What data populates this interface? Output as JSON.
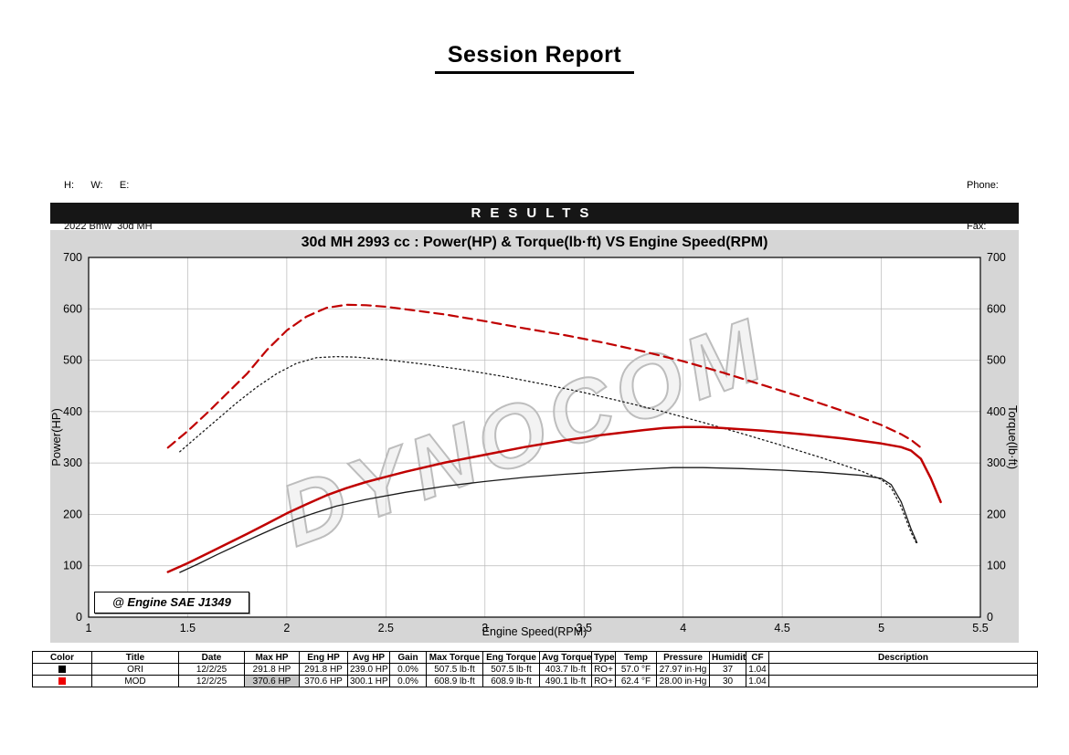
{
  "page": {
    "title": "Session Report"
  },
  "header": {
    "left_line1": "H:      W:      E:",
    "left_line2": "2022 Bmw  30d MH",
    "phone_label": "Phone:",
    "fax_label": "Fax:"
  },
  "results_banner": "RESULTS",
  "chart_data": {
    "type": "line",
    "title": "30d MH 2993 cc : Power(HP) & Torque(lb·ft) VS Engine Speed(RPM)",
    "xlabel": "Engine Speed(RPM)",
    "ylabel_left": "Power(HP)",
    "ylabel_right": "Torque(lb·ft)",
    "xlim": [
      1,
      5.5
    ],
    "ylim": [
      0,
      700
    ],
    "x_ticks": [
      1,
      1.5,
      2,
      2.5,
      3,
      3.5,
      4,
      4.5,
      5,
      5.5
    ],
    "y_ticks": [
      0,
      100,
      200,
      300,
      400,
      500,
      600,
      700
    ],
    "grid": true,
    "legend": "none",
    "watermark": "DYNOCOM",
    "annotation": "@ Engine SAE J1349",
    "series": [
      {
        "id": "mod-torque",
        "name": "MOD Torque (lb·ft)",
        "color": "#c00000",
        "style": "dashed",
        "dash": "10 6",
        "width": 2.2,
        "points": [
          [
            1.4,
            330
          ],
          [
            1.5,
            362
          ],
          [
            1.6,
            398
          ],
          [
            1.7,
            436
          ],
          [
            1.8,
            474
          ],
          [
            1.9,
            520
          ],
          [
            2.0,
            558
          ],
          [
            2.1,
            585
          ],
          [
            2.2,
            602
          ],
          [
            2.3,
            608
          ],
          [
            2.4,
            607
          ],
          [
            2.5,
            604
          ],
          [
            2.6,
            599
          ],
          [
            2.8,
            589
          ],
          [
            3.0,
            576
          ],
          [
            3.2,
            562
          ],
          [
            3.4,
            549
          ],
          [
            3.6,
            534
          ],
          [
            3.8,
            517
          ],
          [
            4.0,
            498
          ],
          [
            4.2,
            476
          ],
          [
            4.4,
            452
          ],
          [
            4.6,
            428
          ],
          [
            4.8,
            402
          ],
          [
            5.0,
            374
          ],
          [
            5.1,
            356
          ],
          [
            5.15,
            345
          ],
          [
            5.2,
            330
          ]
        ]
      },
      {
        "id": "ori-torque",
        "name": "ORI Torque (lb·ft)",
        "color": "#1a1a1a",
        "style": "dotted",
        "dash": "1.6 3.2",
        "width": 1.3,
        "points": [
          [
            1.46,
            322
          ],
          [
            1.55,
            352
          ],
          [
            1.65,
            385
          ],
          [
            1.75,
            418
          ],
          [
            1.85,
            448
          ],
          [
            1.95,
            474
          ],
          [
            2.05,
            494
          ],
          [
            2.15,
            505
          ],
          [
            2.25,
            507
          ],
          [
            2.35,
            506
          ],
          [
            2.5,
            501
          ],
          [
            2.7,
            492
          ],
          [
            2.9,
            481
          ],
          [
            3.1,
            468
          ],
          [
            3.3,
            453
          ],
          [
            3.5,
            437
          ],
          [
            3.7,
            419
          ],
          [
            3.9,
            400
          ],
          [
            4.1,
            379
          ],
          [
            4.3,
            357
          ],
          [
            4.5,
            334
          ],
          [
            4.7,
            310
          ],
          [
            4.9,
            284
          ],
          [
            5.0,
            268
          ],
          [
            5.05,
            252
          ],
          [
            5.1,
            215
          ],
          [
            5.15,
            165
          ],
          [
            5.18,
            142
          ]
        ]
      },
      {
        "id": "mod-power",
        "name": "MOD Power (HP)",
        "color": "#c00000",
        "style": "solid",
        "dash": "",
        "width": 2.5,
        "points": [
          [
            1.4,
            88
          ],
          [
            1.5,
            105
          ],
          [
            1.6,
            124
          ],
          [
            1.7,
            143
          ],
          [
            1.8,
            162
          ],
          [
            1.9,
            182
          ],
          [
            2.0,
            202
          ],
          [
            2.1,
            220
          ],
          [
            2.2,
            237
          ],
          [
            2.3,
            251
          ],
          [
            2.4,
            263
          ],
          [
            2.5,
            273
          ],
          [
            2.6,
            283
          ],
          [
            2.8,
            301
          ],
          [
            3.0,
            316
          ],
          [
            3.2,
            331
          ],
          [
            3.4,
            344
          ],
          [
            3.6,
            355
          ],
          [
            3.8,
            364
          ],
          [
            3.9,
            368
          ],
          [
            4.0,
            370
          ],
          [
            4.1,
            370
          ],
          [
            4.2,
            368
          ],
          [
            4.4,
            363
          ],
          [
            4.6,
            356
          ],
          [
            4.8,
            348
          ],
          [
            5.0,
            338
          ],
          [
            5.1,
            331
          ],
          [
            5.15,
            324
          ],
          [
            5.2,
            308
          ],
          [
            5.25,
            270
          ],
          [
            5.3,
            224
          ]
        ]
      },
      {
        "id": "ori-power",
        "name": "ORI Power (HP)",
        "color": "#1a1a1a",
        "style": "solid",
        "dash": "",
        "width": 1.3,
        "points": [
          [
            1.46,
            87
          ],
          [
            1.55,
            103
          ],
          [
            1.65,
            122
          ],
          [
            1.75,
            140
          ],
          [
            1.85,
            158
          ],
          [
            1.95,
            175
          ],
          [
            2.05,
            191
          ],
          [
            2.15,
            204
          ],
          [
            2.25,
            216
          ],
          [
            2.4,
            229
          ],
          [
            2.6,
            243
          ],
          [
            2.8,
            255
          ],
          [
            3.0,
            264
          ],
          [
            3.2,
            272
          ],
          [
            3.4,
            278
          ],
          [
            3.6,
            283
          ],
          [
            3.8,
            288
          ],
          [
            3.95,
            291
          ],
          [
            4.1,
            291
          ],
          [
            4.3,
            289
          ],
          [
            4.5,
            286
          ],
          [
            4.7,
            282
          ],
          [
            4.9,
            276
          ],
          [
            5.0,
            270
          ],
          [
            5.05,
            258
          ],
          [
            5.1,
            225
          ],
          [
            5.15,
            172
          ],
          [
            5.18,
            145
          ]
        ]
      }
    ]
  },
  "table": {
    "headers": [
      "Color",
      "Title",
      "Date",
      "Max HP",
      "Eng HP",
      "Avg HP",
      "Gain",
      "Max Torque",
      "Eng Torque",
      "Avg Torque",
      "Type",
      "Temp",
      "Pressure",
      "Humidity",
      "CF",
      "Description"
    ],
    "rows": [
      {
        "color": "#000000",
        "cells": [
          "ORI",
          "12/2/25",
          "291.8 HP",
          "291.8 HP",
          "239.0 HP",
          "0.0%",
          "507.5 lb·ft",
          "507.5 lb·ft",
          "403.7 lb·ft",
          "RO+",
          "57.0 °F",
          "27.97 in·Hg",
          "37",
          "1.04",
          ""
        ],
        "highlight_cols": []
      },
      {
        "color": "#ee0000",
        "cells": [
          "MOD",
          "12/2/25",
          "370.6 HP",
          "370.6 HP",
          "300.1 HP",
          "0.0%",
          "608.9 lb·ft",
          "608.9 lb·ft",
          "490.1 lb·ft",
          "RO+",
          "62.4 °F",
          "28.00 in·Hg",
          "30",
          "1.04",
          ""
        ],
        "highlight_cols": [
          2
        ]
      }
    ]
  }
}
